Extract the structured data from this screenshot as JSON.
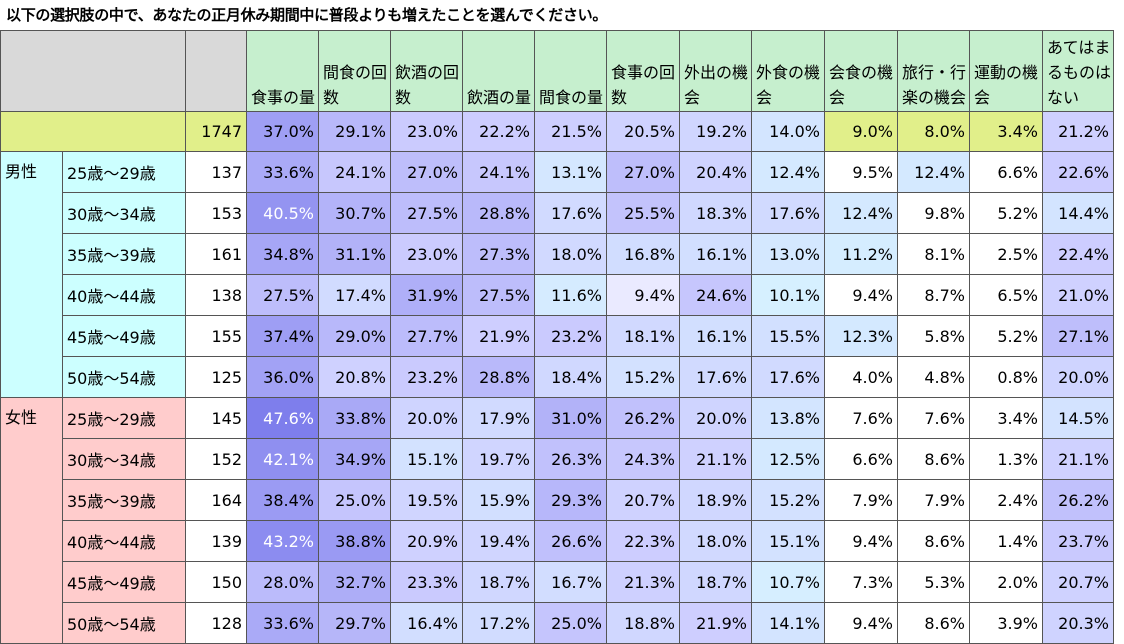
{
  "title": "以下の選択肢の中で、あなたの正月休み期間中に普段よりも増えたことを選んでください。",
  "chart_data": {
    "type": "table",
    "columns": [
      "食事の量",
      "間食の回数",
      "飲酒の回数",
      "飲酒の量",
      "間食の量",
      "食事の回数",
      "外出の機会",
      "外食の機会",
      "会食の機会",
      "旅行・行楽の機会",
      "運動の機会",
      "あてはまるものはない"
    ],
    "total": {
      "n": 1747,
      "values": [
        "37.0%",
        "29.1%",
        "23.0%",
        "22.2%",
        "21.5%",
        "20.5%",
        "19.2%",
        "14.0%",
        "9.0%",
        "8.0%",
        "3.4%",
        "21.2%"
      ]
    },
    "groups": [
      {
        "label": "男性",
        "rows": [
          {
            "age": "25歳～29歳",
            "n": 137,
            "values": [
              "33.6%",
              "24.1%",
              "27.0%",
              "24.1%",
              "13.1%",
              "27.0%",
              "20.4%",
              "12.4%",
              "9.5%",
              "12.4%",
              "6.6%",
              "22.6%"
            ]
          },
          {
            "age": "30歳～34歳",
            "n": 153,
            "values": [
              "40.5%",
              "30.7%",
              "27.5%",
              "28.8%",
              "17.6%",
              "25.5%",
              "18.3%",
              "17.6%",
              "12.4%",
              "9.8%",
              "5.2%",
              "14.4%"
            ]
          },
          {
            "age": "35歳～39歳",
            "n": 161,
            "values": [
              "34.8%",
              "31.1%",
              "23.0%",
              "27.3%",
              "18.0%",
              "16.8%",
              "16.1%",
              "13.0%",
              "11.2%",
              "8.1%",
              "2.5%",
              "22.4%"
            ]
          },
          {
            "age": "40歳～44歳",
            "n": 138,
            "values": [
              "27.5%",
              "17.4%",
              "31.9%",
              "27.5%",
              "11.6%",
              "9.4%",
              "24.6%",
              "10.1%",
              "9.4%",
              "8.7%",
              "6.5%",
              "21.0%"
            ]
          },
          {
            "age": "45歳～49歳",
            "n": 155,
            "values": [
              "37.4%",
              "29.0%",
              "27.7%",
              "21.9%",
              "23.2%",
              "18.1%",
              "16.1%",
              "15.5%",
              "12.3%",
              "5.8%",
              "5.2%",
              "27.1%"
            ]
          },
          {
            "age": "50歳～54歳",
            "n": 125,
            "values": [
              "36.0%",
              "20.8%",
              "23.2%",
              "28.8%",
              "18.4%",
              "15.2%",
              "17.6%",
              "17.6%",
              "4.0%",
              "4.8%",
              "0.8%",
              "20.0%"
            ]
          }
        ]
      },
      {
        "label": "女性",
        "rows": [
          {
            "age": "25歳～29歳",
            "n": 145,
            "values": [
              "47.6%",
              "33.8%",
              "20.0%",
              "17.9%",
              "31.0%",
              "26.2%",
              "20.0%",
              "13.8%",
              "7.6%",
              "7.6%",
              "3.4%",
              "14.5%"
            ]
          },
          {
            "age": "30歳～34歳",
            "n": 152,
            "values": [
              "42.1%",
              "34.9%",
              "15.1%",
              "19.7%",
              "26.3%",
              "24.3%",
              "21.1%",
              "12.5%",
              "6.6%",
              "8.6%",
              "1.3%",
              "21.1%"
            ]
          },
          {
            "age": "35歳～39歳",
            "n": 164,
            "values": [
              "38.4%",
              "25.0%",
              "19.5%",
              "15.9%",
              "29.3%",
              "20.7%",
              "18.9%",
              "15.2%",
              "7.9%",
              "7.9%",
              "2.4%",
              "26.2%"
            ]
          },
          {
            "age": "40歳～44歳",
            "n": 139,
            "values": [
              "43.2%",
              "38.8%",
              "20.9%",
              "19.4%",
              "26.6%",
              "22.3%",
              "18.0%",
              "15.1%",
              "9.4%",
              "8.6%",
              "1.4%",
              "23.7%"
            ]
          },
          {
            "age": "45歳～49歳",
            "n": 150,
            "values": [
              "28.0%",
              "32.7%",
              "23.3%",
              "18.7%",
              "16.7%",
              "21.3%",
              "18.7%",
              "10.7%",
              "7.3%",
              "5.3%",
              "2.0%",
              "20.7%"
            ]
          },
          {
            "age": "50歳～54歳",
            "n": 128,
            "values": [
              "33.6%",
              "29.7%",
              "16.4%",
              "17.2%",
              "25.0%",
              "18.8%",
              "21.9%",
              "14.1%",
              "9.4%",
              "8.6%",
              "3.9%",
              "20.3%"
            ]
          }
        ]
      }
    ]
  }
}
